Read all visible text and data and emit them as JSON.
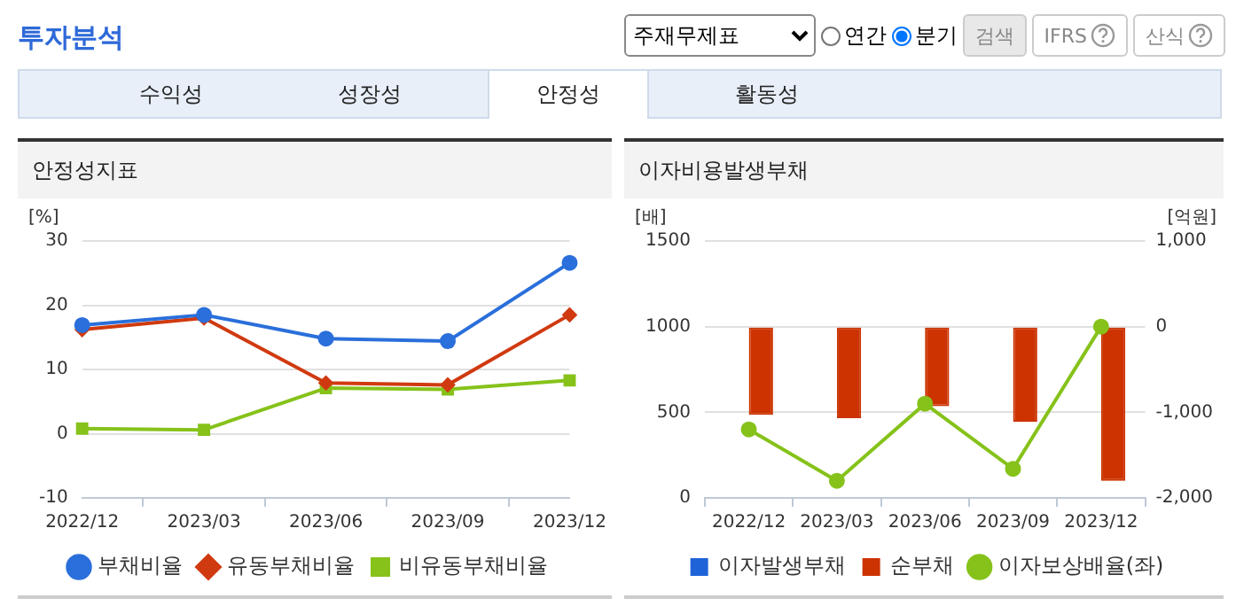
{
  "chart_data": [
    {
      "type": "other",
      "title": "투자분석",
      "annotations": [
        "주재무제표",
        "연간",
        "분기",
        "검색",
        "IFRS",
        "산식",
        "수익성",
        "성장성",
        "안정성",
        "활동성"
      ]
    },
    {
      "type": "line",
      "title": "안정성지표",
      "ylabel": "[%]",
      "categories": [
        "2022/12",
        "2023/03",
        "2023/06",
        "2023/09",
        "2023/12"
      ],
      "ylim": [
        -10,
        30
      ],
      "yticks": [
        -10,
        0,
        10,
        20,
        30
      ],
      "grid": "y",
      "legend": "bottom",
      "series": [
        {
          "name": "부채비율",
          "color": "#2a6fdb",
          "marker": "circle",
          "values": [
            16.9,
            18.5,
            14.8,
            14.4,
            26.6
          ]
        },
        {
          "name": "유동부채비율",
          "color": "#d03a10",
          "marker": "diamond",
          "values": [
            16.2,
            18.0,
            7.9,
            7.6,
            18.5
          ]
        },
        {
          "name": "비유동부채비율",
          "color": "#86c21a",
          "marker": "square",
          "values": [
            0.8,
            0.6,
            7.1,
            6.9,
            8.3
          ]
        }
      ]
    },
    {
      "type": "bar",
      "title": "이자비용발생부채",
      "ylabel": "[배]",
      "y2label": "[억원]",
      "categories": [
        "2022/12",
        "2023/03",
        "2023/06",
        "2023/09",
        "2023/12"
      ],
      "ylim": [
        0,
        1500
      ],
      "yticks": [
        0,
        500,
        1000,
        1500
      ],
      "y2lim": [
        -2000,
        1000
      ],
      "y2ticks": [
        {
          "value": -2000,
          "label": "-2,000"
        },
        {
          "value": -1000,
          "label": "-1,000"
        },
        0,
        {
          "value": 1000,
          "label": "1,000"
        }
      ],
      "grid": "y",
      "legend": "bottom",
      "series": [
        {
          "name": "이자발생부채",
          "type": "bar",
          "axis": "y2",
          "color": "#1f63d8",
          "values": [
            0,
            0,
            0,
            0,
            0
          ]
        },
        {
          "name": "순부채",
          "type": "bar",
          "axis": "y2",
          "color": "#cc3300",
          "values": [
            -1030,
            -1070,
            -930,
            -1110,
            -1800
          ]
        },
        {
          "name": "이자보상배율(좌)",
          "type": "line",
          "axis": "y",
          "color": "#86c21a",
          "marker": "circle",
          "values": [
            400,
            100,
            550,
            170,
            1000
          ]
        }
      ]
    }
  ]
}
